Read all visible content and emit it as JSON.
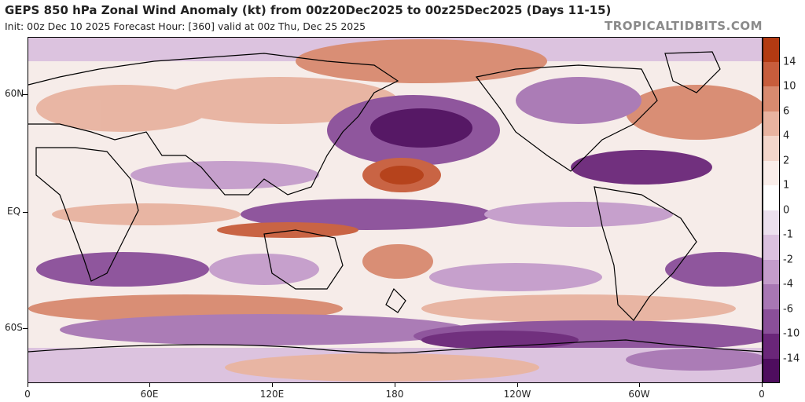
{
  "header": {
    "title": "GEPS 850 hPa Zonal Wind Anomaly (kt) from 00z20Dec2025 to 00z25Dec2025 (Days 11-15)",
    "subtitle": "Init: 00z Dec 10 2025   Forecast Hour: [360]   valid at 00z Thu, Dec 25 2025",
    "brand": "TROPICALTIDBITS.COM"
  },
  "axes": {
    "y_labels": [
      "60N",
      "EQ",
      "60S"
    ],
    "x_labels": [
      "0",
      "60E",
      "120E",
      "180",
      "120W",
      "60W",
      "0"
    ]
  },
  "colorbar": {
    "labels": [
      "14",
      "10",
      "6",
      "4",
      "2",
      "1",
      "0",
      "-1",
      "-2",
      "-4",
      "-6",
      "-10",
      "-14"
    ],
    "colors": [
      "#b33a12",
      "#c75d3c",
      "#d88a6f",
      "#e8b3a0",
      "#f3d6cb",
      "#faeeea",
      "#ffffff",
      "#ece0ee",
      "#dbc1df",
      "#c49ccb",
      "#a877b4",
      "#8a4f99",
      "#6a2679",
      "#4e0d5e"
    ]
  },
  "map": {
    "ocean_base": "#f6ece9",
    "coast_color": "#000000"
  }
}
